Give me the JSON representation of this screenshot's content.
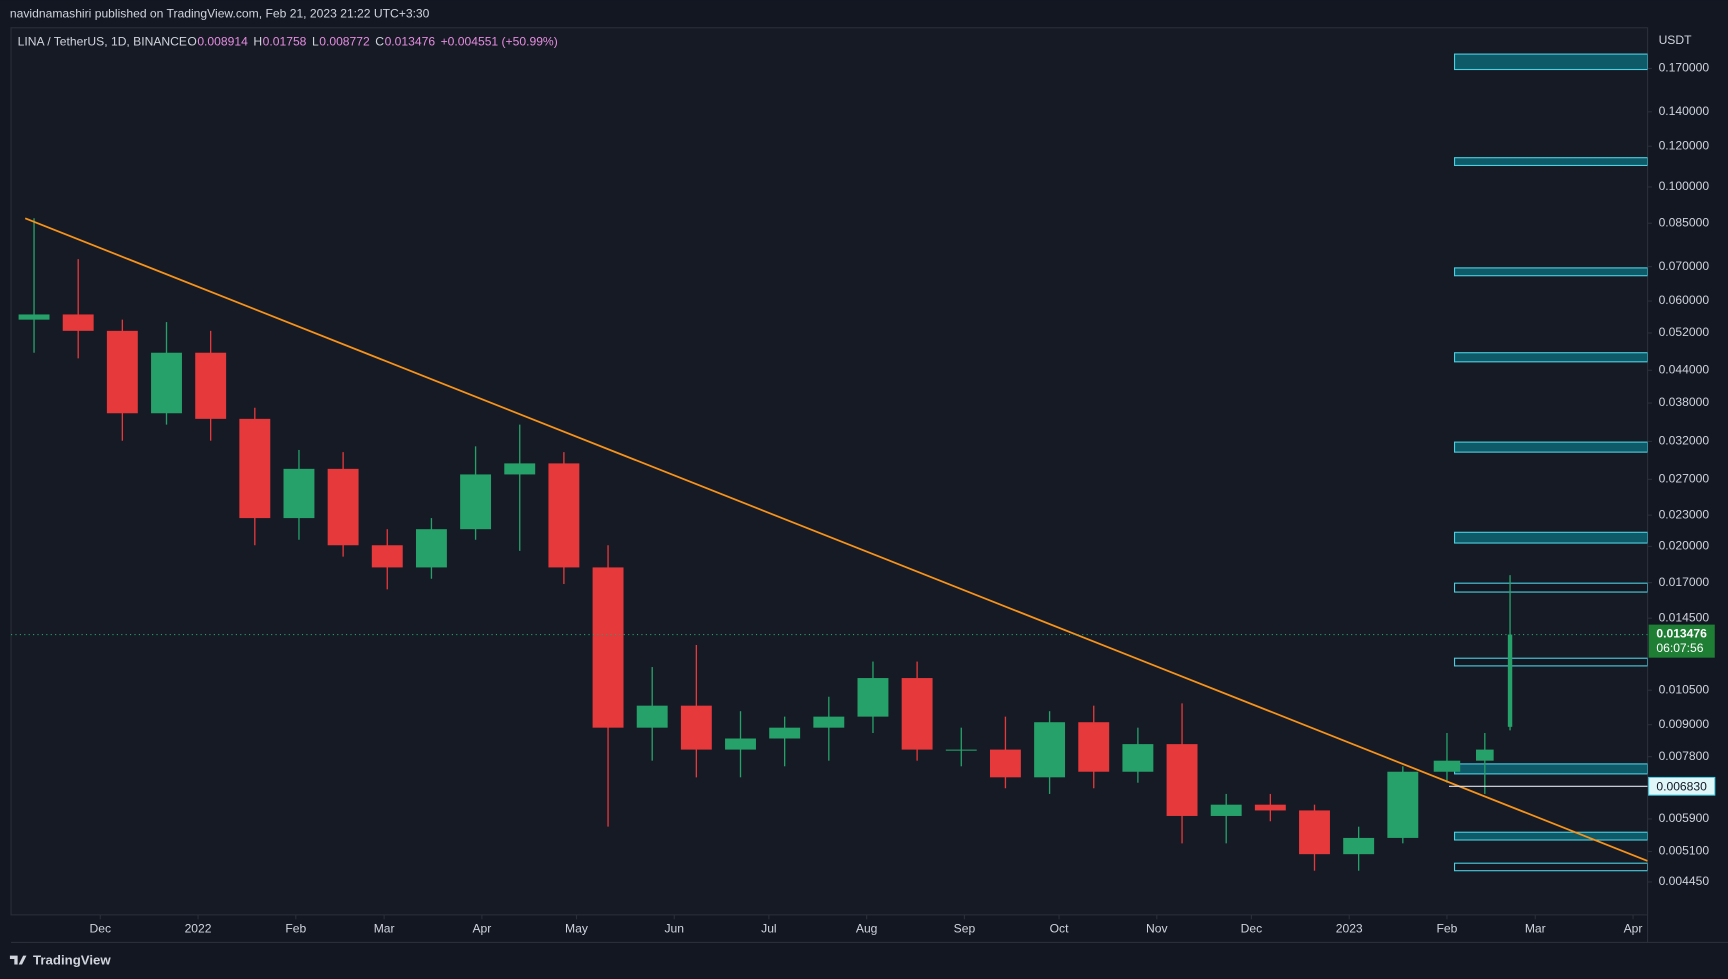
{
  "header": {
    "byline": "navidnamashiri published on TradingView.com, Feb 21, 2023 21:22 UTC+3:30"
  },
  "footer": {
    "brand": "TradingView"
  },
  "chart_data": {
    "type": "candlestick",
    "title": "LINA / TetherUS, 1D, BINANCE",
    "ohlc_keys": [
      "O",
      "H",
      "L",
      "C"
    ],
    "change": "+0.004551 (+50.99%)",
    "y_label": "USDT",
    "log_scale": true,
    "grid": false,
    "up_color": "#26a16a",
    "down_color": "#e5393b",
    "x": [
      -21,
      -7,
      7,
      21,
      35,
      49,
      63,
      77,
      91,
      105,
      119,
      133,
      147,
      161,
      175,
      189,
      203,
      217,
      231,
      245,
      259,
      273,
      287,
      301,
      315,
      329,
      343,
      357,
      371,
      385,
      399,
      413,
      427,
      439,
      447
    ],
    "open": [
      0.0552,
      0.0565,
      0.0525,
      0.0363,
      0.0476,
      0.0354,
      0.0227,
      0.0283,
      0.0201,
      0.0182,
      0.0216,
      0.0276,
      0.029,
      0.0182,
      0.00888,
      0.0098,
      0.00805,
      0.00846,
      0.00888,
      0.00933,
      0.01109,
      0.00805,
      0.00805,
      0.00711,
      0.0091,
      0.00729,
      0.00825,
      0.00598,
      0.00629,
      0.00613,
      0.00504,
      0.00542,
      0.00729,
      0.00766,
      0.008914
    ],
    "high": [
      0.0869,
      0.0724,
      0.0552,
      0.0546,
      0.0525,
      0.0372,
      0.0308,
      0.0305,
      0.0216,
      0.0227,
      0.0313,
      0.0345,
      0.0305,
      0.0201,
      0.01165,
      0.01286,
      0.00956,
      0.00933,
      0.0102,
      0.01194,
      0.01194,
      0.00888,
      0.00933,
      0.00956,
      0.0098,
      0.00888,
      0.0099,
      0.0066,
      0.0066,
      0.00629,
      0.0057,
      0.00747,
      0.00867,
      0.00867,
      0.01758
    ],
    "low": [
      0.0476,
      0.0464,
      0.0321,
      0.0345,
      0.0321,
      0.0201,
      0.0206,
      0.0191,
      0.0165,
      0.0173,
      0.0206,
      0.0196,
      0.0169,
      0.0057,
      0.00766,
      0.00711,
      0.00711,
      0.00747,
      0.00766,
      0.00867,
      0.00766,
      0.00747,
      0.00677,
      0.0066,
      0.00677,
      0.00694,
      0.00529,
      0.00529,
      0.00584,
      0.00468,
      0.00468,
      0.00529,
      0.00694,
      0.0066,
      0.008772
    ],
    "close": [
      0.0565,
      0.0525,
      0.0363,
      0.0476,
      0.0354,
      0.0227,
      0.0283,
      0.0201,
      0.0182,
      0.0216,
      0.0276,
      0.029,
      0.0182,
      0.00888,
      0.0098,
      0.00805,
      0.00846,
      0.00888,
      0.00933,
      0.01109,
      0.00805,
      0.00805,
      0.00711,
      0.0091,
      0.00729,
      0.00825,
      0.00598,
      0.00629,
      0.00613,
      0.00504,
      0.00542,
      0.00729,
      0.00766,
      0.00805,
      0.013476
    ],
    "xlim": [
      -28.3,
      490.6
    ],
    "ylim": [
      0.00384,
      0.204
    ],
    "xticks": [
      {
        "value": 0,
        "label": "Dec"
      },
      {
        "value": 31,
        "label": "2022"
      },
      {
        "value": 62,
        "label": "Feb"
      },
      {
        "value": 90,
        "label": "Mar"
      },
      {
        "value": 121,
        "label": "Apr"
      },
      {
        "value": 151,
        "label": "May"
      },
      {
        "value": 182,
        "label": "Jun"
      },
      {
        "value": 212,
        "label": "Jul"
      },
      {
        "value": 243,
        "label": "Aug"
      },
      {
        "value": 274,
        "label": "Sep"
      },
      {
        "value": 304,
        "label": "Oct"
      },
      {
        "value": 335,
        "label": "Nov"
      },
      {
        "value": 365,
        "label": "Dec"
      },
      {
        "value": 396,
        "label": "2023"
      },
      {
        "value": 427,
        "label": "Feb"
      },
      {
        "value": 455,
        "label": "Mar"
      },
      {
        "value": 486,
        "label": "Apr"
      }
    ],
    "yticks": [
      {
        "value": 0.17,
        "label": "0.170000"
      },
      {
        "value": 0.14,
        "label": "0.140000"
      },
      {
        "value": 0.12,
        "label": "0.120000"
      },
      {
        "value": 0.1,
        "label": "0.100000"
      },
      {
        "value": 0.085,
        "label": "0.085000"
      },
      {
        "value": 0.07,
        "label": "0.070000"
      },
      {
        "value": 0.06,
        "label": "0.060000"
      },
      {
        "value": 0.052,
        "label": "0.052000"
      },
      {
        "value": 0.044,
        "label": "0.044000"
      },
      {
        "value": 0.038,
        "label": "0.038000"
      },
      {
        "value": 0.032,
        "label": "0.032000"
      },
      {
        "value": 0.027,
        "label": "0.027000"
      },
      {
        "value": 0.023,
        "label": "0.023000"
      },
      {
        "value": 0.02,
        "label": "0.020000"
      },
      {
        "value": 0.017,
        "label": "0.017000"
      },
      {
        "value": 0.0145,
        "label": "0.014500"
      },
      {
        "value": 0.0105,
        "label": "0.010500"
      },
      {
        "value": 0.009,
        "label": "0.009000"
      },
      {
        "value": 0.0078,
        "label": "0.007800"
      },
      {
        "value": 0.0059,
        "label": "0.005900"
      },
      {
        "value": 0.0051,
        "label": "0.005100"
      },
      {
        "value": 0.00445,
        "label": "0.004450"
      }
    ],
    "trendline": {
      "x": [
        -23.8,
        490.6
      ],
      "y": [
        0.0869,
        0.00489
      ],
      "color": "#f7931a"
    },
    "zone_x": 429.4,
    "zones": [
      {
        "low": 0.1692,
        "high": 0.1813,
        "filled": true
      },
      {
        "low": 0.1101,
        "high": 0.114,
        "filled": true
      },
      {
        "low": 0.0672,
        "high": 0.0696,
        "filled": true
      },
      {
        "low": 0.0457,
        "high": 0.0476,
        "filled": true
      },
      {
        "low": 0.0305,
        "high": 0.0319,
        "filled": true
      },
      {
        "low": 0.0203,
        "high": 0.0213,
        "filled": true
      },
      {
        "low": 0.0163,
        "high": 0.01696,
        "filled": false
      },
      {
        "low": 0.01171,
        "high": 0.01212,
        "filled": false
      },
      {
        "low": 0.00722,
        "high": 0.00755,
        "filled": true
      },
      {
        "low": 0.00537,
        "high": 0.00556,
        "filled": true
      },
      {
        "low": 0.00468,
        "high": 0.00484,
        "filled": false
      }
    ],
    "price_line": {
      "value": 0.00683,
      "label": "0.006830"
    },
    "last_price": 0.013476,
    "countdown": "06:07:56"
  }
}
